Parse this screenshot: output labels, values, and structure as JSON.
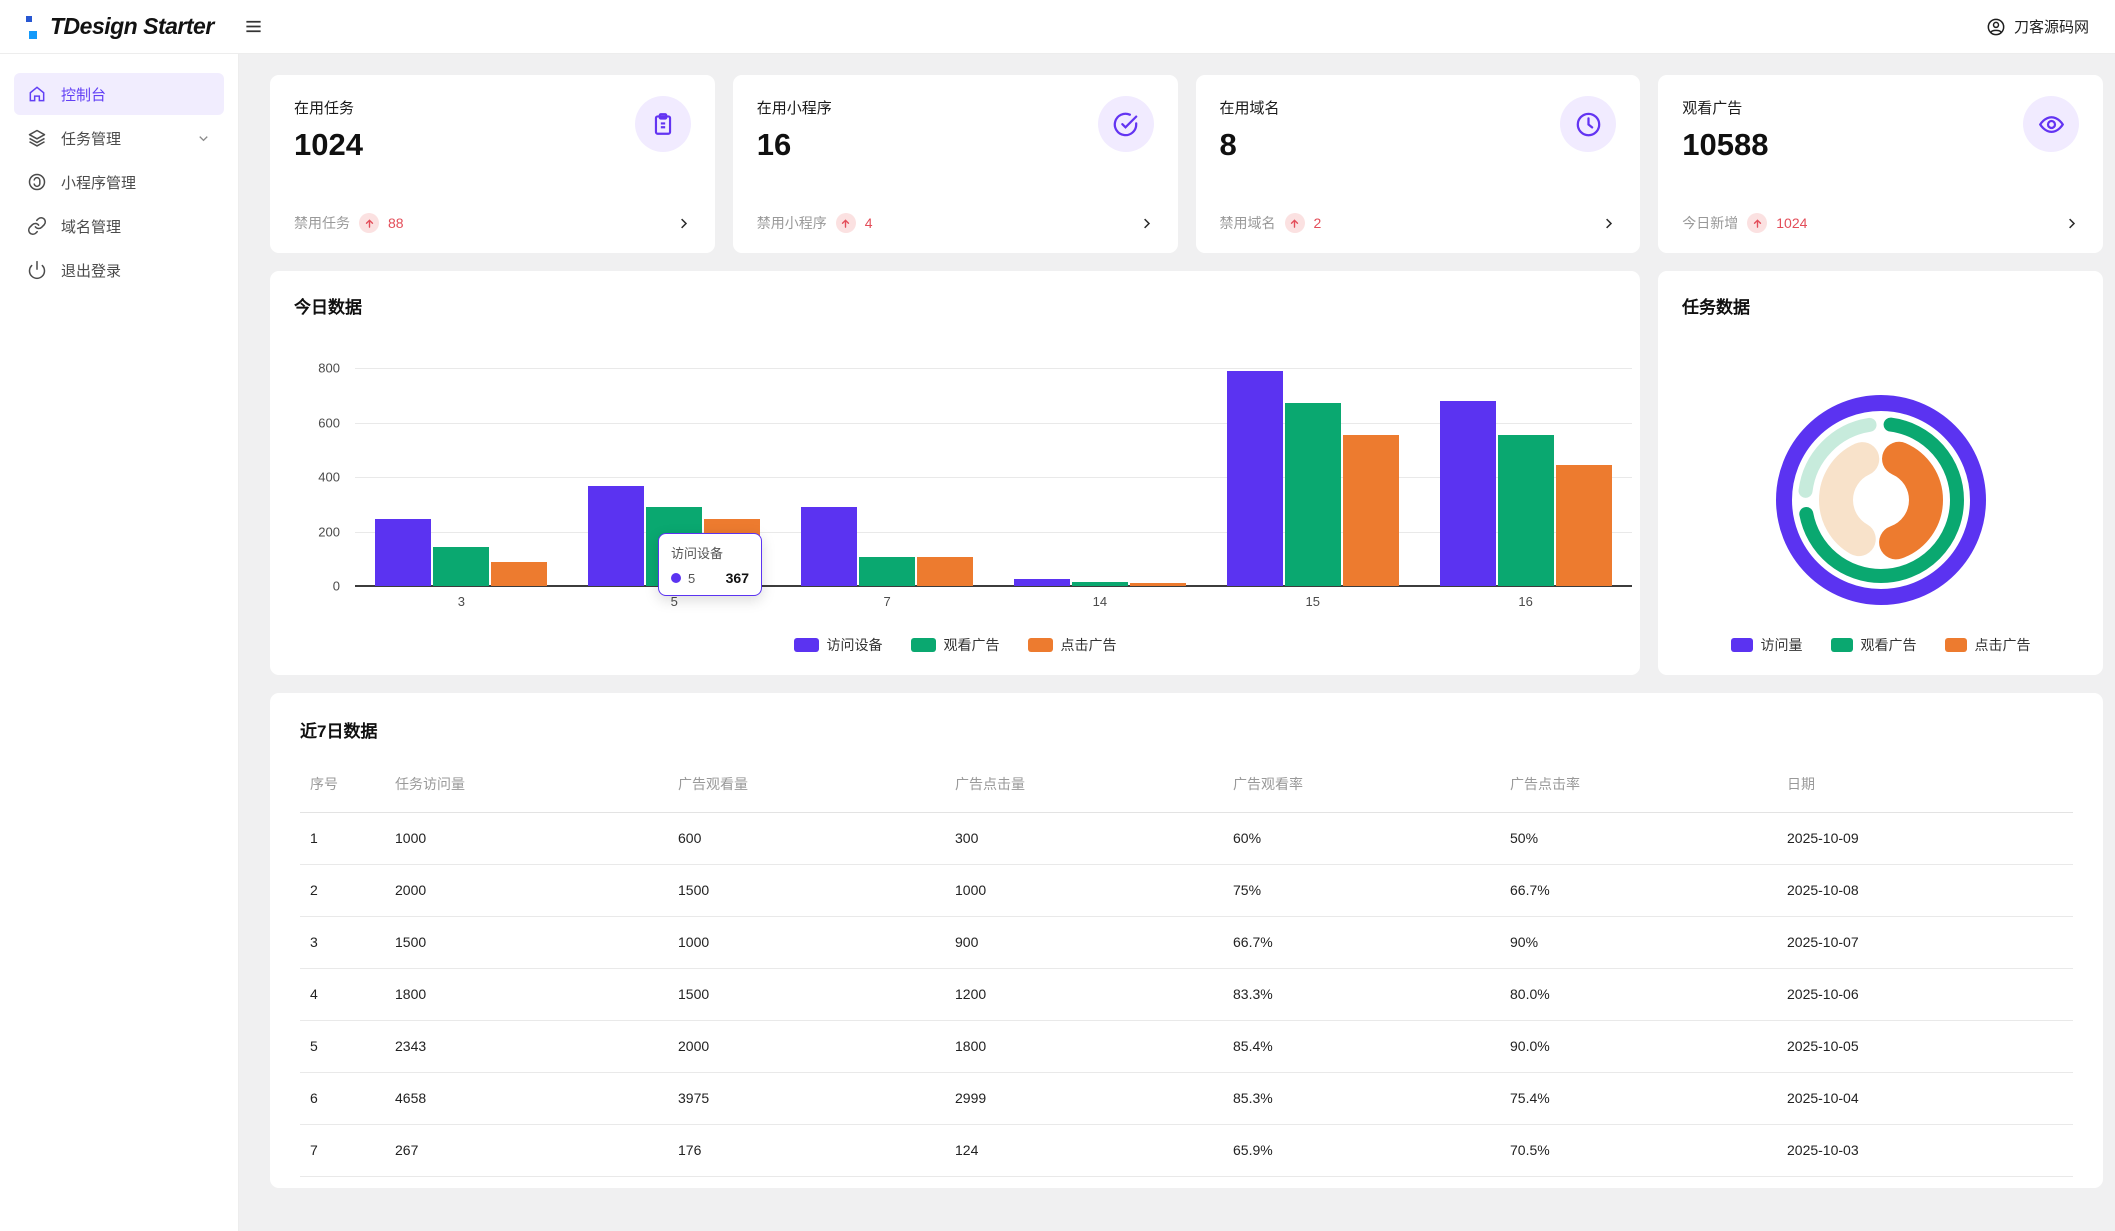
{
  "header": {
    "logo_text": "TDesign Starter",
    "user_name": "刀客源码网"
  },
  "sidebar": {
    "items": [
      {
        "label": "控制台",
        "icon": "home-icon",
        "active": true
      },
      {
        "label": "任务管理",
        "icon": "layers-icon",
        "has_submenu": true
      },
      {
        "label": "小程序管理",
        "icon": "miniprogram-icon"
      },
      {
        "label": "域名管理",
        "icon": "link-icon"
      },
      {
        "label": "退出登录",
        "icon": "power-icon"
      }
    ]
  },
  "stat_cards": [
    {
      "title": "在用任务",
      "value": "1024",
      "sub_label": "禁用任务",
      "trend": "88",
      "icon": "clipboard-icon"
    },
    {
      "title": "在用小程序",
      "value": "16",
      "sub_label": "禁用小程序",
      "trend": "4",
      "icon": "check-circle-icon"
    },
    {
      "title": "在用域名",
      "value": "8",
      "sub_label": "禁用域名",
      "trend": "2",
      "icon": "clock-icon"
    },
    {
      "title": "观看广告",
      "value": "10588",
      "sub_label": "今日新增",
      "trend": "1024",
      "icon": "eye-icon"
    }
  ],
  "chart_data": [
    {
      "type": "bar",
      "title": "今日数据",
      "categories": [
        "3",
        "5",
        "7",
        "14",
        "15",
        "16"
      ],
      "series": [
        {
          "name": "访问设备",
          "color": "#5B33F1",
          "values": [
            245,
            367,
            290,
            25,
            790,
            680
          ]
        },
        {
          "name": "观看广告",
          "color": "#0AA870",
          "values": [
            145,
            290,
            105,
            15,
            670,
            555
          ]
        },
        {
          "name": "点击广告",
          "color": "#ED7B2F",
          "values": [
            88,
            245,
            105,
            10,
            555,
            445
          ]
        }
      ],
      "ylim": [
        0,
        800
      ],
      "yticks": [
        0,
        200,
        400,
        600,
        800
      ],
      "legend_position": "bottom",
      "tooltip": {
        "title": "访问设备",
        "label": "5",
        "value": "367"
      }
    },
    {
      "type": "pie",
      "title": "任务数据",
      "legend": [
        {
          "name": "访问量",
          "color": "#5B33F1"
        },
        {
          "name": "观看广告",
          "color": "#0AA870"
        },
        {
          "name": "点击广告",
          "color": "#ED7B2F"
        }
      ],
      "rings": [
        {
          "r": 97,
          "width": 16,
          "segments": [
            {
              "color": "#5B33F1",
              "start": 0,
              "span": 360
            }
          ]
        },
        {
          "r": 76,
          "width": 14,
          "segments": [
            {
              "color": "#0AA870",
              "start": 2,
              "span": 263
            },
            {
              "color": "#C7EBDC",
              "start": 272,
              "span": 85
            }
          ]
        },
        {
          "r": 45,
          "width": 34,
          "segments": [
            {
              "color": "#ED7B2F",
              "start": 2,
              "span": 180
            },
            {
              "color": "#F8E2CA",
              "start": 188,
              "span": 169
            }
          ]
        }
      ]
    }
  ],
  "table": {
    "title": "近7日数据",
    "columns": [
      "序号",
      "任务访问量",
      "广告观看量",
      "广告点击量",
      "广告观看率",
      "广告点击率",
      "日期"
    ],
    "rows": [
      [
        "1",
        "1000",
        "600",
        "300",
        "60%",
        "50%",
        "2025-10-09"
      ],
      [
        "2",
        "2000",
        "1500",
        "1000",
        "75%",
        "66.7%",
        "2025-10-08"
      ],
      [
        "3",
        "1500",
        "1000",
        "900",
        "66.7%",
        "90%",
        "2025-10-07"
      ],
      [
        "4",
        "1800",
        "1500",
        "1200",
        "83.3%",
        "80.0%",
        "2025-10-06"
      ],
      [
        "5",
        "2343",
        "2000",
        "1800",
        "85.4%",
        "90.0%",
        "2025-10-05"
      ],
      [
        "6",
        "4658",
        "3975",
        "2999",
        "85.3%",
        "75.4%",
        "2025-10-04"
      ],
      [
        "7",
        "267",
        "176",
        "124",
        "65.9%",
        "70.5%",
        "2025-10-03"
      ]
    ]
  },
  "colors": {
    "brand_purple": "#5B33F1",
    "success_green": "#0AA870",
    "warn_orange": "#ED7B2F",
    "trend_red": "#E34D59",
    "trend_bg_pink": "#FBE1E1",
    "icon_bubble_bg": "#F1EBFF",
    "sidebar_active_bg": "#F1EDFE",
    "donut_teal": "#C7EBDC",
    "donut_cream": "#F8E2CA"
  }
}
